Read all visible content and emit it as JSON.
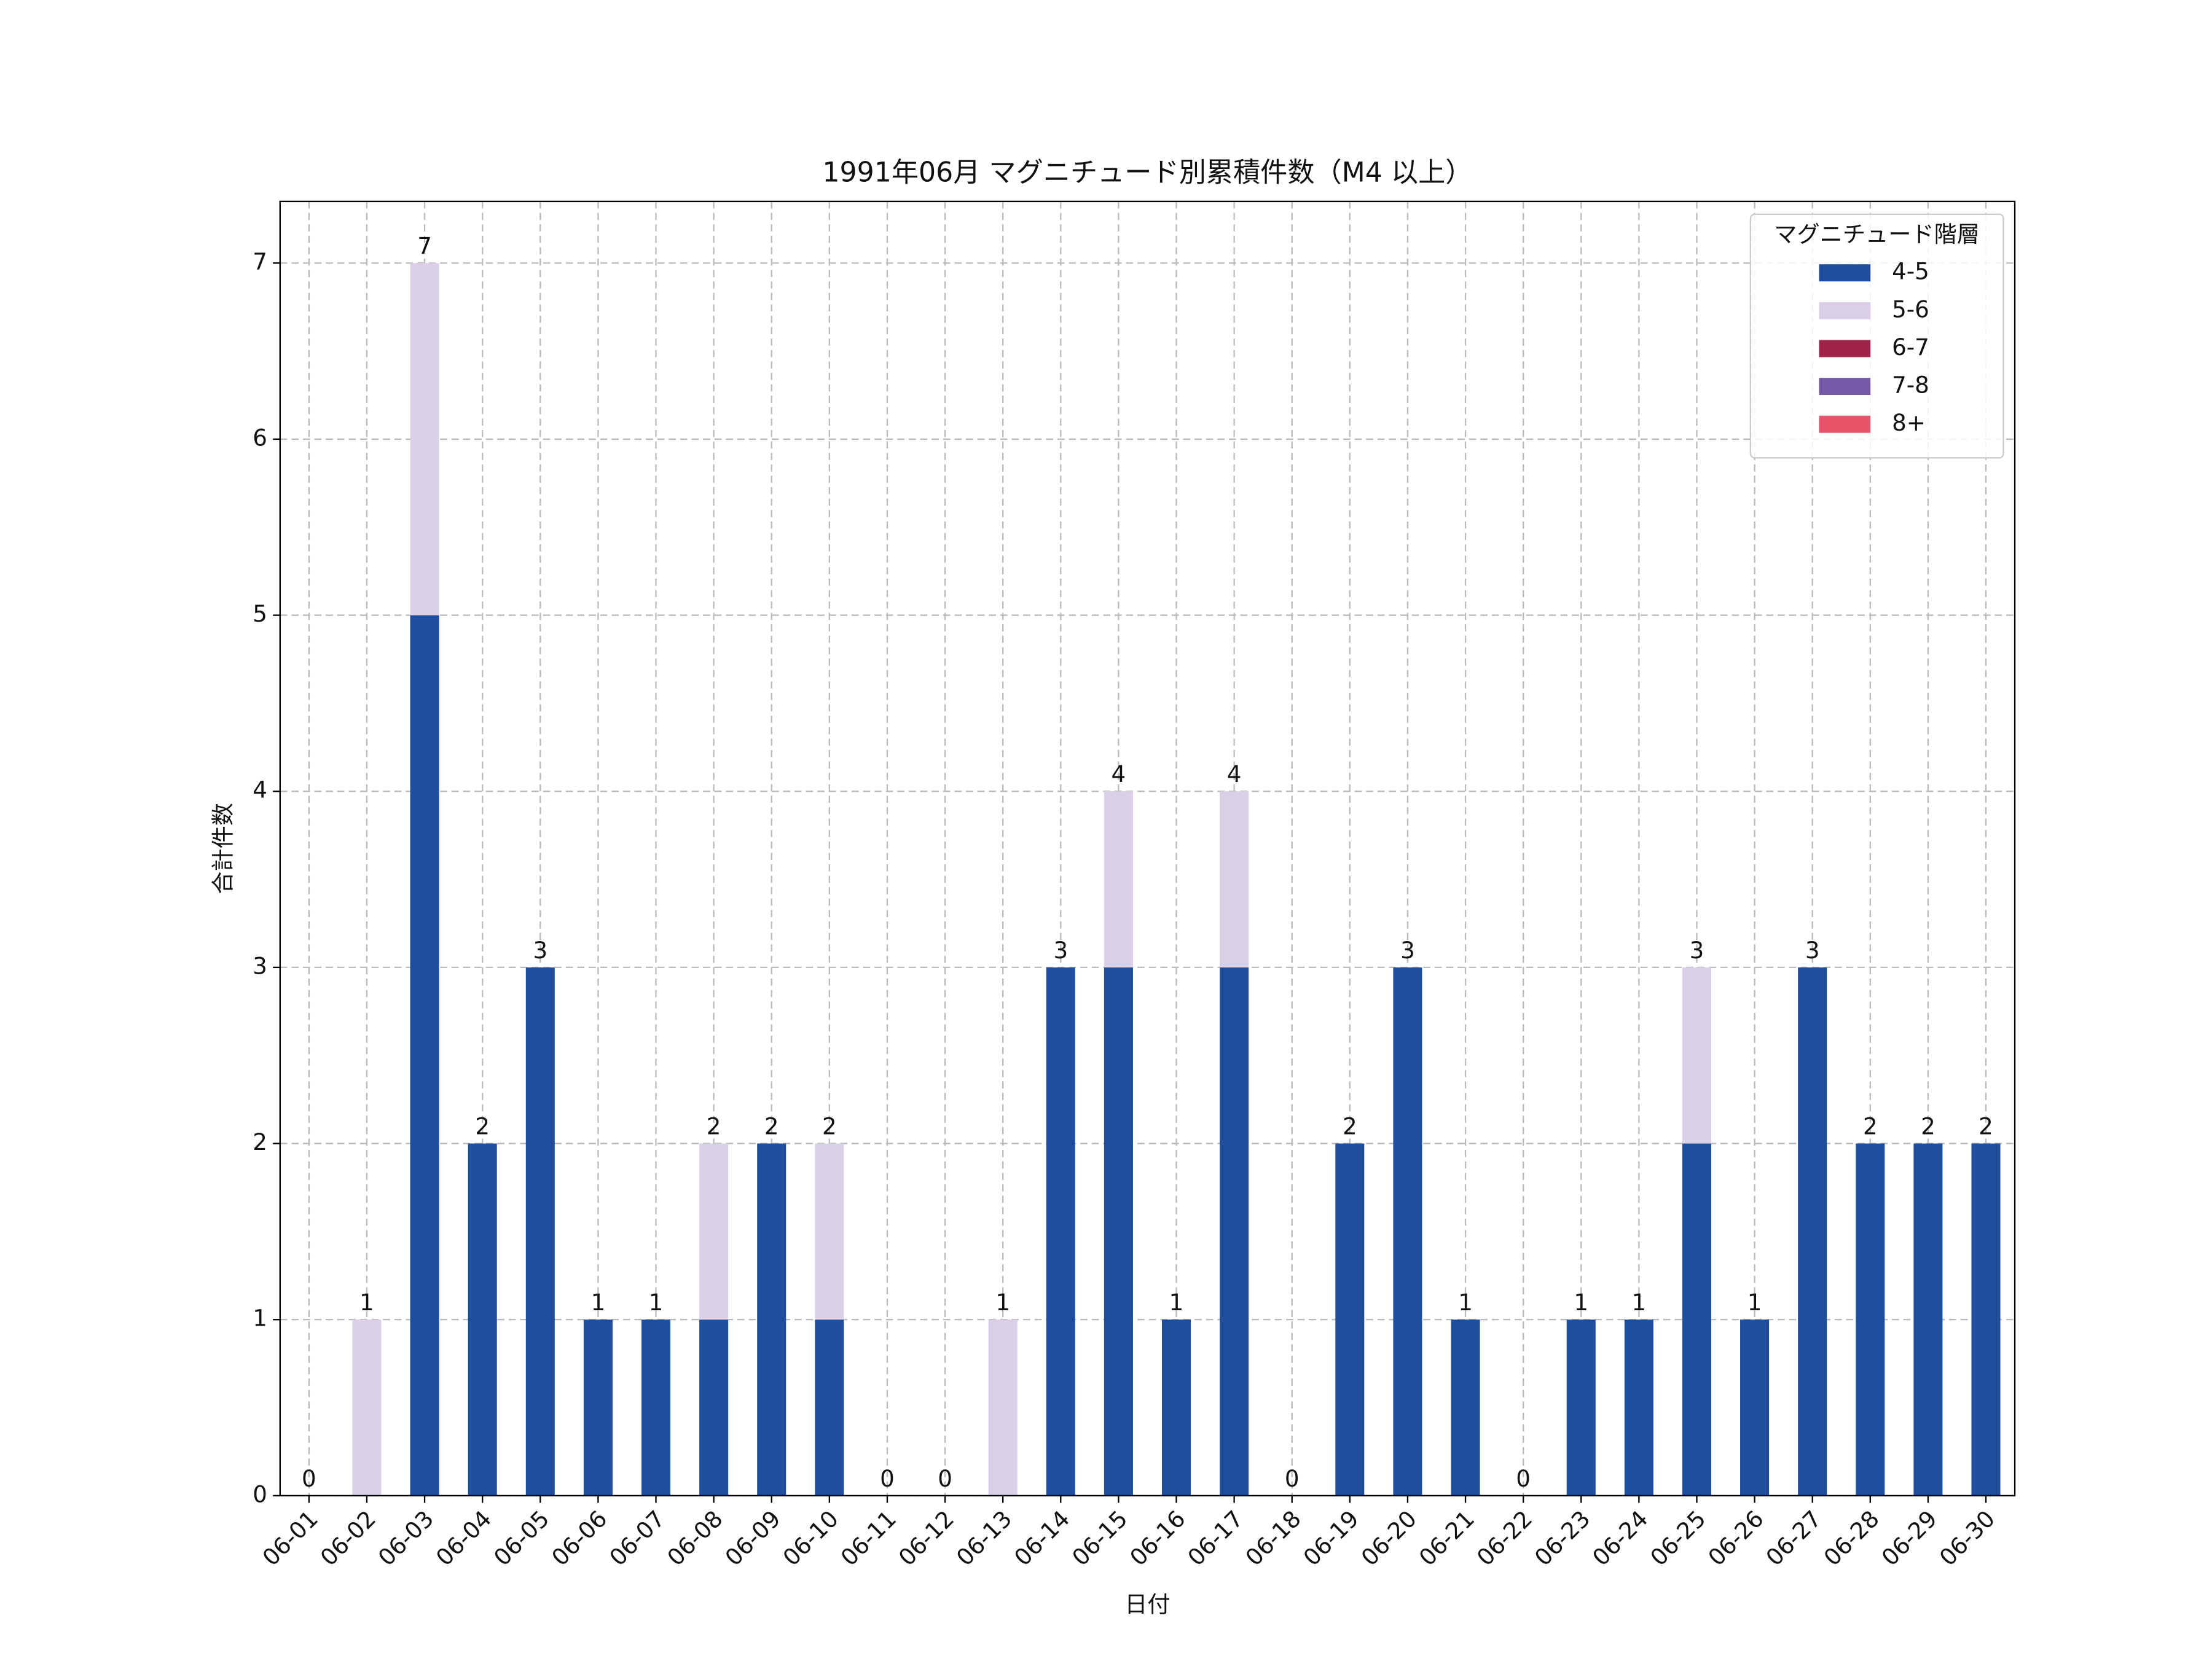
{
  "chart_data": {
    "type": "stacked_bar",
    "title": "1991年06月 マグニチュード別累積件数（M4 以上）",
    "xlabel": "日付",
    "ylabel": "合計件数",
    "categories": [
      "06-01",
      "06-02",
      "06-03",
      "06-04",
      "06-05",
      "06-06",
      "06-07",
      "06-08",
      "06-09",
      "06-10",
      "06-11",
      "06-12",
      "06-13",
      "06-14",
      "06-15",
      "06-16",
      "06-17",
      "06-18",
      "06-19",
      "06-20",
      "06-21",
      "06-22",
      "06-23",
      "06-24",
      "06-25",
      "06-26",
      "06-27",
      "06-28",
      "06-29",
      "06-30"
    ],
    "series": [
      {
        "name": "4-5",
        "color": "#1f4e9c",
        "values": [
          0,
          0,
          5,
          2,
          3,
          1,
          1,
          1,
          2,
          1,
          0,
          0,
          0,
          3,
          3,
          1,
          3,
          0,
          2,
          3,
          1,
          0,
          1,
          1,
          2,
          1,
          3,
          2,
          2,
          2
        ]
      },
      {
        "name": "5-6",
        "color": "#d9cfe6",
        "values": [
          0,
          1,
          2,
          0,
          0,
          0,
          0,
          1,
          0,
          1,
          0,
          0,
          1,
          0,
          1,
          0,
          1,
          0,
          0,
          0,
          0,
          0,
          0,
          0,
          1,
          0,
          0,
          0,
          0,
          0
        ]
      },
      {
        "name": "6-7",
        "color": "#a3224a",
        "values": [
          0,
          0,
          0,
          0,
          0,
          0,
          0,
          0,
          0,
          0,
          0,
          0,
          0,
          0,
          0,
          0,
          0,
          0,
          0,
          0,
          0,
          0,
          0,
          0,
          0,
          0,
          0,
          0,
          0,
          0
        ]
      },
      {
        "name": "7-8",
        "color": "#7558a6",
        "values": [
          0,
          0,
          0,
          0,
          0,
          0,
          0,
          0,
          0,
          0,
          0,
          0,
          0,
          0,
          0,
          0,
          0,
          0,
          0,
          0,
          0,
          0,
          0,
          0,
          0,
          0,
          0,
          0,
          0,
          0
        ]
      },
      {
        "name": "8+",
        "color": "#e9546b",
        "values": [
          0,
          0,
          0,
          0,
          0,
          0,
          0,
          0,
          0,
          0,
          0,
          0,
          0,
          0,
          0,
          0,
          0,
          0,
          0,
          0,
          0,
          0,
          0,
          0,
          0,
          0,
          0,
          0,
          0,
          0
        ]
      }
    ],
    "totals": [
      0,
      1,
      7,
      2,
      3,
      1,
      1,
      2,
      2,
      2,
      0,
      0,
      1,
      3,
      4,
      1,
      4,
      0,
      2,
      3,
      1,
      0,
      1,
      1,
      3,
      1,
      3,
      2,
      2,
      2
    ],
    "legend_title": "マグニチュード階層",
    "legend_position": "upper right",
    "ylim": [
      0,
      7.35
    ],
    "yticks": [
      0,
      1,
      2,
      3,
      4,
      5,
      6,
      7
    ],
    "grid": true
  }
}
